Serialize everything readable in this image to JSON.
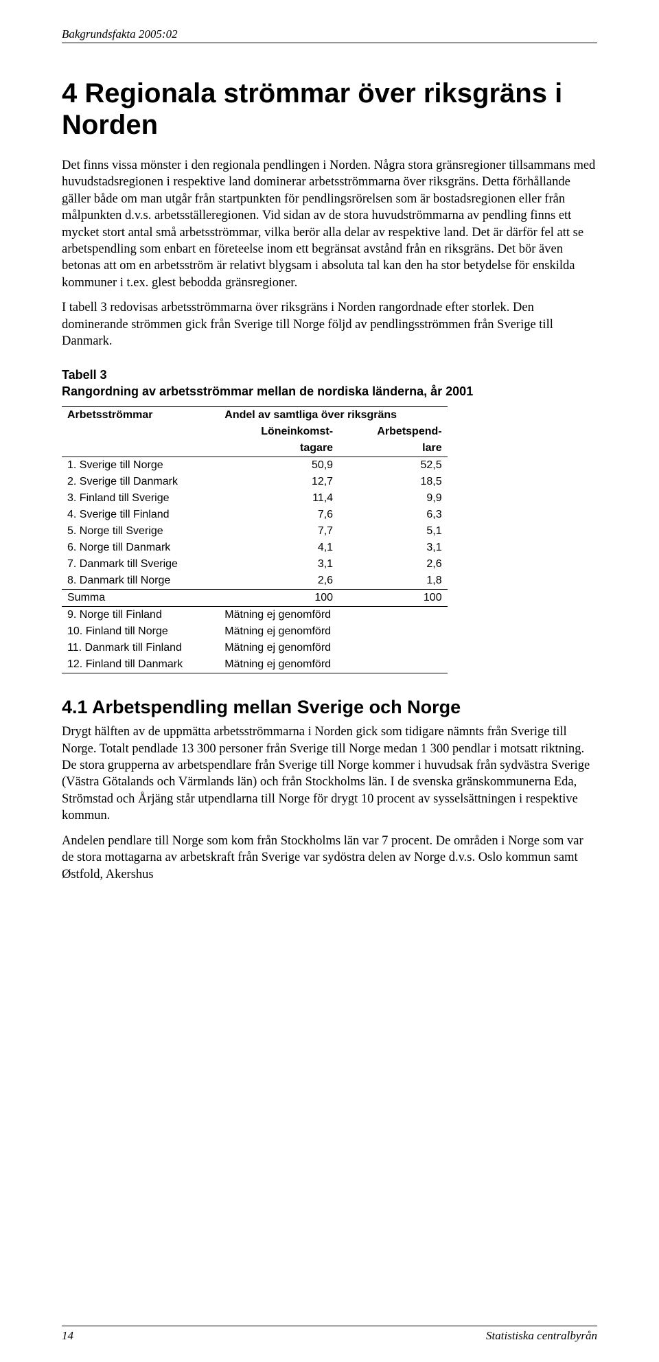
{
  "header": {
    "text": "Bakgrundsfakta 2005:02"
  },
  "chapter": {
    "number_title": "4   Regionala strömmar över riksgräns i Norden"
  },
  "paragraphs": {
    "p1": "Det finns vissa mönster i den regionala pendlingen i Norden. Några stora gränsregioner tillsammans med huvudstadsregionen i respektive land dominerar arbetsströmmarna över riksgräns. Detta förhållande gäller både om man utgår från startpunkten för pendlingsrörelsen som är bostadsregionen eller från målpunkten d.v.s. arbetsställeregionen. Vid sidan av de stora huvudströmmarna av pendling finns ett mycket stort antal små arbetsströmmar, vilka berör alla delar av respektive land. Det är därför fel att se arbetspendling som enbart en företeelse inom ett begränsat avstånd från en riksgräns. Det bör även betonas att om en arbetsström är relativt blygsam i absoluta tal kan den ha stor betydelse för enskilda kommuner i t.ex. glest bebodda gränsregioner.",
    "p2": "I tabell 3 redovisas arbetsströmmarna över riksgräns i Norden rangordnade efter storlek. Den dominerande strömmen gick från Sverige till Norge följd av pendlingsströmmen från Sverige till Danmark.",
    "p3": "Drygt hälften av de uppmätta arbetsströmmarna i Norden gick som tidigare nämnts från Sverige till Norge. Totalt pendlade 13 300 personer från Sverige till Norge medan 1 300 pendlar i motsatt riktning. De stora grupperna av arbetspendlare från Sverige till Norge kommer i huvudsak från sydvästra Sverige (Västra Götalands och Värmlands län) och från Stockholms län. I de svenska gränskommunerna Eda, Strömstad och Årjäng står utpendlarna till Norge för drygt 10 procent av sysselsättningen i respektive kommun.",
    "p4": "Andelen pendlare till Norge som kom från Stockholms län var 7 procent. De områden i Norge som var de stora mottagarna av arbetskraft från Sverige var sydöstra delen av Norge d.v.s. Oslo kommun samt Østfold, Akershus"
  },
  "table3": {
    "title_line1": "Tabell 3",
    "title_line2": "Rangordning av arbetsströmmar mellan de nordiska länderna, år 2001",
    "col1_header": "Arbetsströmmar",
    "col_group_header": "Andel av samtliga över riksgräns",
    "col2_header_line1": "Löneinkomst-",
    "col2_header_line2": "tagare",
    "col3_header_line1": "Arbetspend-",
    "col3_header_line2": "lare",
    "rows": [
      {
        "label": "1. Sverige till Norge",
        "v1": "50,9",
        "v2": "52,5"
      },
      {
        "label": "2. Sverige till Danmark",
        "v1": "12,7",
        "v2": "18,5"
      },
      {
        "label": "3. Finland till Sverige",
        "v1": "11,4",
        "v2": "9,9"
      },
      {
        "label": "4. Sverige till Finland",
        "v1": "7,6",
        "v2": "6,3"
      },
      {
        "label": "5. Norge till Sverige",
        "v1": "7,7",
        "v2": "5,1"
      },
      {
        "label": "6. Norge till Danmark",
        "v1": "4,1",
        "v2": "3,1"
      },
      {
        "label": "7. Danmark till Sverige",
        "v1": "3,1",
        "v2": "2,6"
      },
      {
        "label": "8. Danmark till Norge",
        "v1": "2,6",
        "v2": "1,8"
      }
    ],
    "sum_label": "Summa",
    "sum_v1": "100",
    "sum_v2": "100",
    "rows2": [
      {
        "label": "9. Norge till Finland",
        "note": "Mätning ej genomförd"
      },
      {
        "label": "10. Finland till Norge",
        "note": "Mätning ej genomförd"
      },
      {
        "label": "11. Danmark till Finland",
        "note": "Mätning ej genomförd"
      },
      {
        "label": "12. Finland till Danmark",
        "note": "Mätning ej genomförd"
      }
    ]
  },
  "section41": {
    "title": "4.1   Arbetspendling mellan Sverige och Norge"
  },
  "footer": {
    "page_number": "14",
    "publisher": "Statistiska centralbyrån"
  }
}
